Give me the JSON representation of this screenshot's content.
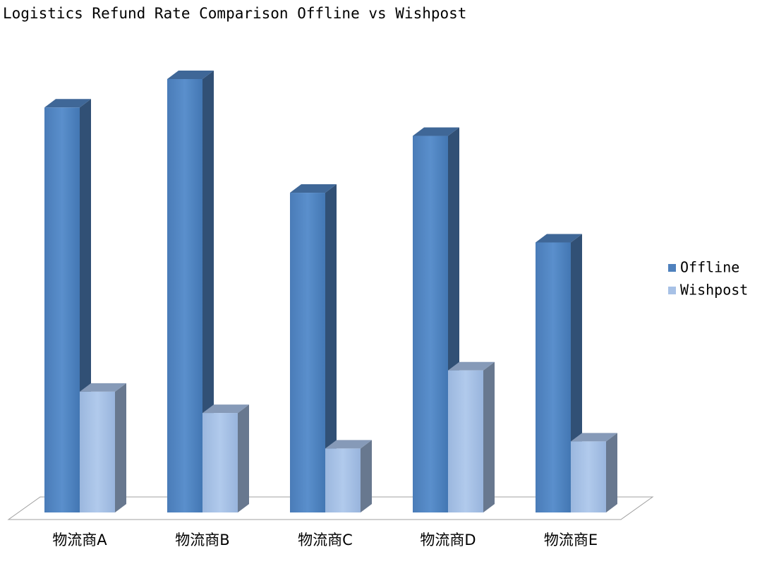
{
  "chart_data": {
    "type": "bar3d",
    "title": "Logistics Refund Rate Comparison Offline vs Wishpost",
    "categories": [
      "物流商A",
      "物流商B",
      "物流商C",
      "物流商D",
      "物流商E"
    ],
    "series": [
      {
        "name": "Offline",
        "color": "#4f81bd",
        "values": [
          5.7,
          6.1,
          4.5,
          5.3,
          3.8
        ]
      },
      {
        "name": "Wishpost",
        "color": "#a7c1e6",
        "values": [
          1.7,
          1.4,
          0.9,
          2.0,
          1.0
        ]
      }
    ],
    "legend": "right"
  }
}
